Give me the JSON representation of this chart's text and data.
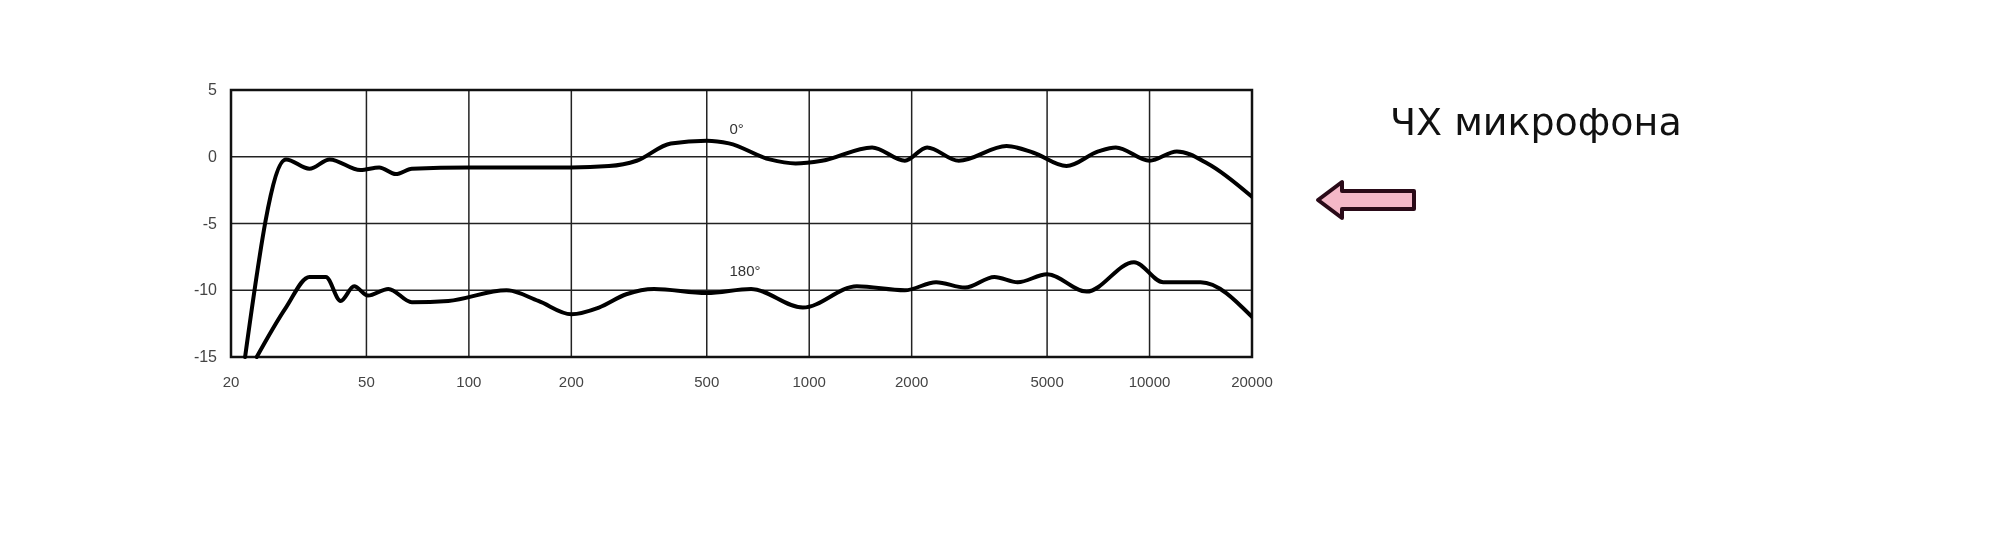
{
  "chart_data": {
    "type": "line",
    "title": "ЧХ микрофона",
    "log": "x",
    "grid": true,
    "legend": false,
    "marker": "none",
    "line_style": "solid",
    "xlim": [
      20,
      20000
    ],
    "xticks": [
      20,
      50,
      100,
      200,
      500,
      1000,
      2000,
      5000,
      10000,
      20000
    ],
    "ylim": [
      -15,
      5
    ],
    "yticks": [
      5,
      0,
      -5,
      -10,
      -15
    ],
    "series": [
      {
        "name": "0°",
        "color": "#000000",
        "x": [
          22,
          29,
          34,
          39,
          48,
          54.5,
          61,
          68,
          100,
          200,
          258,
          311,
          392,
          500,
          581,
          765,
          912,
          1090,
          1530,
          1910,
          2220,
          2750,
          3800,
          4560,
          5700,
          7070,
          7960,
          10000,
          12030,
          14800,
          20000
        ],
        "values": [
          -15,
          -0.2,
          -0.9,
          -0.2,
          -1.0,
          -0.8,
          -1.3,
          -0.9,
          -0.8,
          -0.8,
          -0.7,
          -0.3,
          1.0,
          1.2,
          1.0,
          -0.2,
          -0.5,
          -0.3,
          0.7,
          -0.3,
          0.7,
          -0.3,
          0.8,
          0.3,
          -0.7,
          0.4,
          0.7,
          -0.3,
          0.4,
          -0.5,
          -3.0
        ]
      },
      {
        "name": "180°",
        "color": "#000000",
        "x": [
          23.8,
          29,
          34,
          38,
          42,
          46,
          50.5,
          58,
          68,
          87,
          129,
          160,
          200,
          241,
          290,
          350,
          500,
          675,
          958,
          1380,
          1910,
          2360,
          2870,
          3500,
          4100,
          5000,
          6530,
          9000,
          10970,
          14120,
          20000
        ],
        "values": [
          -15,
          -11.3,
          -9.0,
          -9.0,
          -10.8,
          -9.7,
          -10.4,
          -9.9,
          -10.9,
          -10.8,
          -10.0,
          -10.8,
          -11.8,
          -11.3,
          -10.3,
          -9.9,
          -10.2,
          -9.9,
          -11.3,
          -9.7,
          -10.0,
          -9.4,
          -9.8,
          -9.0,
          -9.4,
          -8.8,
          -10.1,
          -7.9,
          -9.4,
          -9.4,
          -12.0
        ]
      }
    ]
  }
}
